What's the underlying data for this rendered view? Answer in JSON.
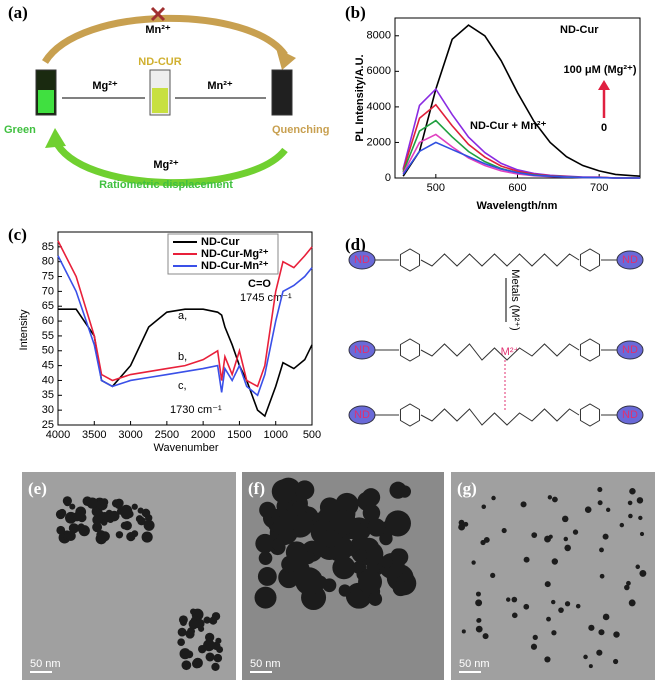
{
  "panel_a": {
    "label": "(a)",
    "top_ion": "Mn²⁺",
    "center": "ND-CUR",
    "left_ion": "Mg²⁺",
    "right_ion": "Mn²⁺",
    "left": "Green",
    "right": "Quenching",
    "bottom_ion": "Mg²⁺",
    "bottom": "Ratiometric displacement"
  },
  "panel_b": {
    "label": "(b)",
    "type": "line",
    "x_label": "Wavelength/nm",
    "y_label": "PL Intensity/A.U.",
    "annotation": "100 μM (Mg²⁺)",
    "annotation_low": "0",
    "xlim": [
      450,
      750
    ],
    "ylim": [
      0,
      9000
    ],
    "xticks": [
      500,
      600,
      700
    ],
    "yticks": [
      0,
      2000,
      4000,
      6000,
      8000
    ],
    "x": [
      460,
      480,
      500,
      520,
      540,
      560,
      580,
      600,
      620,
      640,
      660,
      680,
      700,
      720,
      750
    ],
    "series": [
      {
        "name": "ND-Cur",
        "color": "#000000",
        "values": [
          100,
          1500,
          5000,
          7800,
          8600,
          8000,
          6600,
          4800,
          3200,
          2000,
          1200,
          700,
          400,
          200,
          100
        ]
      },
      {
        "color": "#8a2be2",
        "values": [
          510,
          4080,
          5000,
          3570,
          2300,
          1430,
          820,
          460,
          260,
          150,
          100,
          50,
          50,
          0,
          0
        ]
      },
      {
        "color": "#e0203a",
        "values": [
          420,
          3360,
          4120,
          2940,
          1890,
          1180,
          670,
          380,
          210,
          130,
          80,
          40,
          40,
          0,
          0
        ]
      },
      {
        "color": "#20a040",
        "values": [
          330,
          2640,
          3230,
          2310,
          1490,
          920,
          530,
          300,
          170,
          100,
          70,
          30,
          30,
          0,
          0
        ]
      },
      {
        "color": "#e040c0",
        "values": [
          250,
          2000,
          2450,
          1750,
          1130,
          700,
          400,
          230,
          130,
          80,
          50,
          30,
          30,
          0,
          0
        ]
      },
      {
        "name": "ND-Cur + Mn²⁺",
        "color": "#3050e0",
        "values": [
          200,
          1500,
          2000,
          1600,
          1200,
          800,
          500,
          300,
          150,
          100,
          50,
          30,
          20,
          0,
          0
        ]
      }
    ]
  },
  "panel_c": {
    "label": "(c)",
    "type": "line",
    "x_label": "Wavenumber",
    "y_label": "Intensity",
    "annotations": {
      "a": "a,",
      "b": "b,",
      "c": "c,",
      "co": "C=O",
      "peak1": "1745 cm⁻¹",
      "peak2": "1730 cm⁻¹"
    },
    "xlim": [
      4000,
      500
    ],
    "ylim": [
      25,
      90
    ],
    "xticks": [
      4000,
      3500,
      3000,
      2500,
      2000,
      1500,
      1000,
      500
    ],
    "yticks": [
      25,
      30,
      35,
      40,
      45,
      50,
      55,
      60,
      65,
      70,
      75,
      80,
      85
    ],
    "x": [
      4000,
      3750,
      3500,
      3400,
      3250,
      3000,
      2750,
      2500,
      2250,
      2000,
      1800,
      1745,
      1700,
      1600,
      1500,
      1400,
      1250,
      1150,
      1000,
      900,
      750,
      600,
      500
    ],
    "series": [
      {
        "name": "ND-Cur",
        "color": "#000000",
        "values": [
          64,
          64,
          55,
          40,
          38,
          45,
          58,
          63,
          64,
          64,
          63,
          62,
          58,
          52,
          45,
          40,
          30,
          28,
          38,
          46,
          44,
          47,
          52
        ]
      },
      {
        "name": "ND-Cur-Mg²⁺",
        "color": "#e8203a",
        "values": [
          87,
          75,
          55,
          42,
          40,
          42,
          43,
          44,
          45,
          47,
          50,
          40,
          48,
          42,
          50,
          40,
          38,
          45,
          70,
          80,
          78,
          82,
          85
        ]
      },
      {
        "name": "ND-Cur-Mn²⁺",
        "color": "#3a50e8",
        "values": [
          82,
          70,
          52,
          40,
          38,
          40,
          41,
          42,
          43,
          44,
          45,
          36,
          44,
          40,
          45,
          38,
          35,
          42,
          60,
          70,
          72,
          75,
          78
        ]
      }
    ]
  },
  "panel_d": {
    "label": "(d)",
    "nd": "ND",
    "arrow": "Metals (M²⁺)",
    "metal": "M²⁺"
  },
  "panel_e": {
    "label": "(e)",
    "scale": "50 nm"
  },
  "panel_f": {
    "label": "(f)",
    "scale": "50 nm"
  },
  "panel_g": {
    "label": "(g)",
    "scale": "50 nm"
  }
}
